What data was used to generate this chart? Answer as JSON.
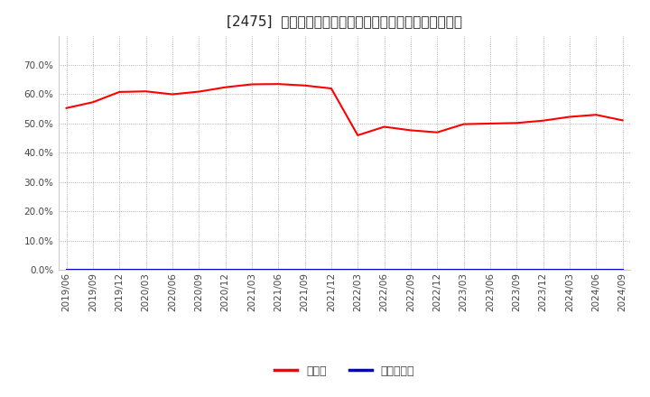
{
  "title": "[2475]  現預金、有利子負債の総資産に対する比率の推移",
  "x_labels": [
    "2019/06",
    "2019/09",
    "2019/12",
    "2020/03",
    "2020/06",
    "2020/09",
    "2020/12",
    "2021/03",
    "2021/06",
    "2021/09",
    "2021/12",
    "2022/03",
    "2022/06",
    "2022/09",
    "2022/12",
    "2023/03",
    "2023/06",
    "2023/09",
    "2023/12",
    "2024/03",
    "2024/06",
    "2024/09"
  ],
  "cash_values": [
    0.553,
    0.573,
    0.608,
    0.61,
    0.6,
    0.609,
    0.624,
    0.634,
    0.635,
    0.63,
    0.62,
    0.46,
    0.489,
    0.477,
    0.47,
    0.498,
    0.5,
    0.502,
    0.51,
    0.523,
    0.53,
    0.511
  ],
  "debt_values": [
    0.0,
    0.0,
    0.0,
    0.0,
    0.0,
    0.0,
    0.0,
    0.0,
    0.0,
    0.0,
    0.0,
    0.0,
    0.0,
    0.0,
    0.0,
    0.0,
    0.0,
    0.0,
    0.0,
    0.0,
    0.0,
    0.0
  ],
  "cash_color": "#ff0000",
  "debt_color": "#0000cc",
  "bg_color": "#ffffff",
  "plot_bg_color": "#ffffff",
  "grid_color": "#999999",
  "text_color": "#444444",
  "legend_cash": "現預金",
  "legend_debt": "有利子負債",
  "ylim": [
    0.0,
    0.8
  ],
  "yticks": [
    0.0,
    0.1,
    0.2,
    0.3,
    0.4,
    0.5,
    0.6,
    0.7
  ],
  "title_fontsize": 11,
  "axis_fontsize": 7.5,
  "legend_fontsize": 9
}
